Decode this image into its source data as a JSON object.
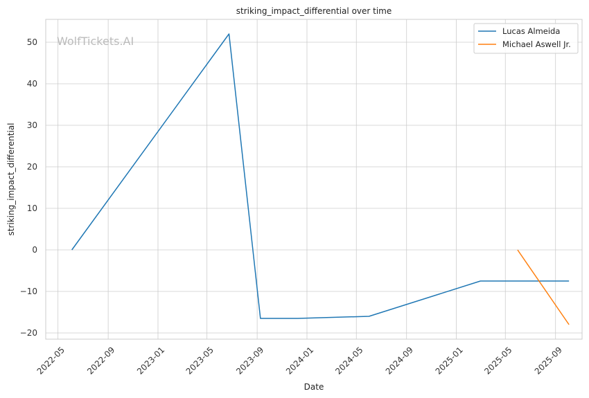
{
  "chart_data": {
    "type": "line",
    "title": "striking_impact_differential over time",
    "xlabel": "Date",
    "ylabel": "striking_impact_differential",
    "watermark": "WolfTickets.AI",
    "x_axis_type": "date",
    "xlim": [
      "2022-04-01",
      "2025-11-05"
    ],
    "ylim": [
      -21.5,
      55.5
    ],
    "x_ticks": [
      "2022-05-01",
      "2022-09-01",
      "2023-01-01",
      "2023-05-01",
      "2023-09-01",
      "2024-01-01",
      "2024-05-01",
      "2024-09-01",
      "2025-01-01",
      "2025-05-01",
      "2025-09-01"
    ],
    "x_tick_labels": [
      "2022-05",
      "2022-09",
      "2023-01",
      "2023-05",
      "2023-09",
      "2024-01",
      "2024-05",
      "2024-09",
      "2025-01",
      "2025-05",
      "2025-09"
    ],
    "y_ticks": [
      50,
      40,
      30,
      20,
      10,
      0,
      -10,
      -20
    ],
    "y_tick_labels": [
      "50",
      "40",
      "30",
      "20",
      "10",
      "0",
      "−10",
      "−20"
    ],
    "grid": true,
    "legend_position": "top-right",
    "series": [
      {
        "name": "Lucas Almeida",
        "color": "#1f77b4",
        "points": [
          {
            "x": "2022-06-04",
            "y": 0
          },
          {
            "x": "2023-06-24",
            "y": 52
          },
          {
            "x": "2023-09-09",
            "y": -16.5
          },
          {
            "x": "2023-12-09",
            "y": -16.5
          },
          {
            "x": "2024-06-01",
            "y": -16
          },
          {
            "x": "2025-03-01",
            "y": -7.5
          },
          {
            "x": "2025-10-04",
            "y": -7.5
          }
        ]
      },
      {
        "name": "Michael Aswell Jr.",
        "color": "#ff7f0e",
        "points": [
          {
            "x": "2025-05-31",
            "y": 0
          },
          {
            "x": "2025-10-04",
            "y": -18
          }
        ]
      }
    ]
  }
}
